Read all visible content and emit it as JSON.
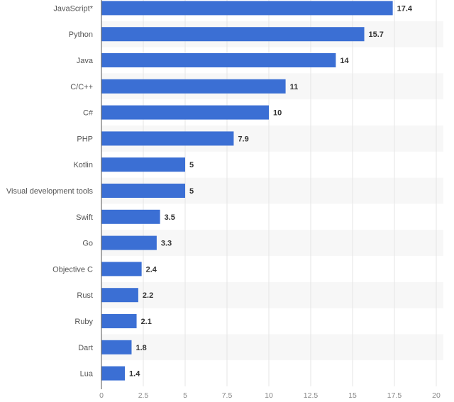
{
  "chart_data": {
    "type": "bar",
    "orientation": "horizontal",
    "title": "",
    "xlabel": "",
    "ylabel": "",
    "categories": [
      "JavaScript*",
      "Python",
      "Java",
      "C/C++",
      "C#",
      "PHP",
      "Kotlin",
      "Visual development tools",
      "Swift",
      "Go",
      "Objective C",
      "Rust",
      "Ruby",
      "Dart",
      "Lua"
    ],
    "values": [
      17.4,
      15.7,
      14,
      11,
      10,
      7.9,
      5,
      5,
      3.5,
      3.3,
      2.4,
      2.2,
      2.1,
      1.8,
      1.4
    ],
    "value_labels": [
      "17.4",
      "15.7",
      "14",
      "11",
      "10",
      "7.9",
      "5",
      "5",
      "3.5",
      "3.3",
      "2.4",
      "2.2",
      "2.1",
      "1.8",
      "1.4"
    ],
    "xlim": [
      0,
      20
    ],
    "xticks": [
      "0",
      "2.5",
      "5",
      "7.5",
      "10",
      "12.5",
      "15",
      "17.5",
      "20"
    ],
    "grid": true,
    "legend": "none",
    "colors": {
      "bar": "#3b6fd4",
      "row_band": "#f7f7f7",
      "grid": "#e6e6e6",
      "axis": "#555555"
    }
  }
}
